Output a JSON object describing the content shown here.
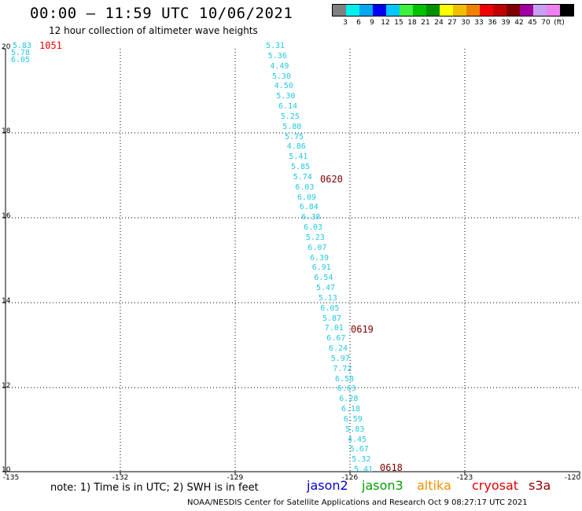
{
  "title": "00:00 – 11:59 UTC 10/06/2021",
  "subtitle": "12 hour collection of altimeter wave heights",
  "legend": {
    "colors": [
      "#808080",
      "#00f0f0",
      "#00a8f0",
      "#0000f0",
      "#00c8ff",
      "#40f040",
      "#00c000",
      "#009000",
      "#ffff00",
      "#f0c000",
      "#f08000",
      "#f00000",
      "#c00000",
      "#800000",
      "#a000a0",
      "#c8a0f0",
      "#f080f0",
      "#000000"
    ],
    "labels": [
      "3",
      "6",
      "9",
      "12",
      "15",
      "18",
      "21",
      "24",
      "27",
      "30",
      "33",
      "36",
      "39",
      "42",
      "45",
      "70",
      "(ft)"
    ]
  },
  "map": {
    "lat_ticks": [
      "20",
      "18",
      "16",
      "14",
      "12",
      "10"
    ],
    "lon_ticks": [
      "-135",
      "-132",
      "-129",
      "-126",
      "-123",
      "-120"
    ]
  },
  "track_values": {
    "left": [
      "5.83",
      "5.78",
      "6.05"
    ],
    "main": [
      "5.31",
      "5.36",
      "4.49",
      "5.30",
      "4.50",
      "5.30",
      "6.14",
      "5.25",
      "5.80",
      "5.75",
      "4.86",
      "5.41",
      "5.85",
      "5.74",
      "6.03",
      "6.09",
      "6.84",
      "6.38",
      "6.03",
      "5.23",
      "6.07",
      "6.39",
      "6.91",
      "6.54",
      "5.47",
      "5.13",
      "6.05",
      "5.87",
      "7.01",
      "6.67",
      "6.24",
      "5.97",
      "7.72",
      "6.58",
      "6.63",
      "6.28",
      "6.18",
      "6.59",
      "5.83",
      "4.45",
      "5.67",
      "5.32",
      "5.41"
    ]
  },
  "pass_labels": [
    {
      "text": "1051",
      "color": "#f00000"
    },
    {
      "text": "0620",
      "color": "#800000"
    },
    {
      "text": "0619",
      "color": "#800000"
    },
    {
      "text": "0618",
      "color": "#800000"
    }
  ],
  "note": "note: 1) Time is in UTC; 2) SWH is in feet",
  "satellites": [
    {
      "name": "jason2",
      "color": "#0000d0"
    },
    {
      "name": "jason3",
      "color": "#00a000"
    },
    {
      "name": "altika",
      "color": "#f09000"
    },
    {
      "name": "cryosat",
      "color": "#e00000"
    },
    {
      "name": "s3a",
      "color": "#900000"
    }
  ],
  "credit": "NOAA/NESDIS Center for Satellite Applications and Research    Oct  9 08:27:17 UTC 2021"
}
